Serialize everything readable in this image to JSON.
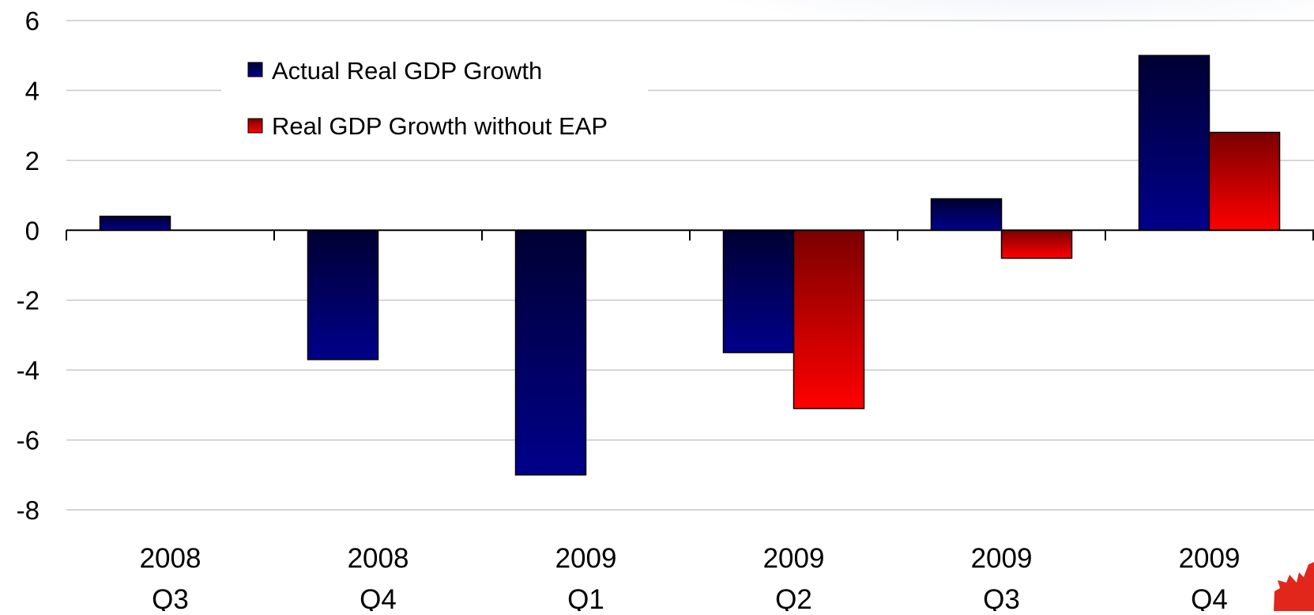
{
  "chart_data": {
    "type": "bar",
    "categories": [
      [
        "2008",
        "Q3"
      ],
      [
        "2008",
        "Q4"
      ],
      [
        "2009",
        "Q1"
      ],
      [
        "2009",
        "Q2"
      ],
      [
        "2009",
        "Q3"
      ],
      [
        "2009",
        "Q4"
      ]
    ],
    "series": [
      {
        "name": "Actual Real GDP Growth",
        "values": [
          0.4,
          -3.7,
          -7.0,
          -3.5,
          0.9,
          5.0
        ],
        "color": "#000080"
      },
      {
        "name": "Real GDP Growth without EAP",
        "values": [
          null,
          null,
          null,
          -5.1,
          -0.8,
          2.8
        ],
        "color": "#ff0000"
      }
    ],
    "yticks": [
      6,
      4,
      2,
      0,
      -2,
      -4,
      -6,
      -8
    ],
    "ylim": [
      -8,
      6
    ],
    "grid": true,
    "legend_position": "top-left",
    "title": "",
    "xlabel": "",
    "ylabel": ""
  }
}
